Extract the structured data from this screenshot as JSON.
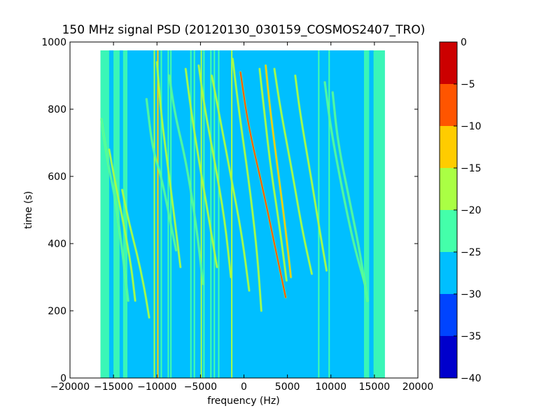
{
  "chart_data": {
    "type": "heatmap",
    "title": "150 MHz signal PSD (20120130_030159_COSMOS2407_TRO)",
    "xlabel": "frequency (Hz)",
    "ylabel": "time (s)",
    "xlim": [
      -20000,
      20000
    ],
    "ylim": [
      0,
      1000
    ],
    "x_ticks": [
      -20000,
      -15000,
      -10000,
      -5000,
      0,
      5000,
      10000,
      15000,
      20000
    ],
    "x_tick_labels": [
      "−20000",
      "−15000",
      "−10000",
      "−5000",
      "0",
      "5000",
      "10000",
      "15000",
      "20000"
    ],
    "y_ticks": [
      0,
      200,
      400,
      600,
      800,
      1000
    ],
    "y_tick_labels": [
      "0",
      "200",
      "400",
      "600",
      "800",
      "1000"
    ],
    "data_extent": {
      "x": [
        -16500,
        16200
      ],
      "y": [
        0,
        975
      ]
    },
    "background_level": -27.5,
    "colorbar": {
      "range": [
        -40,
        0
      ],
      "ticks": [
        0,
        -5,
        -10,
        -15,
        -20,
        -25,
        -30,
        -35,
        -40
      ],
      "tick_labels": [
        "0",
        "−5",
        "−10",
        "−15",
        "−20",
        "−25",
        "−30",
        "−35",
        "−40"
      ],
      "levels": [
        {
          "from": -40,
          "to": -35,
          "color": "#0000cc"
        },
        {
          "from": -35,
          "to": -30,
          "color": "#0044ff"
        },
        {
          "from": -30,
          "to": -25,
          "color": "#00bfff"
        },
        {
          "from": -25,
          "to": -20,
          "color": "#44ffaa"
        },
        {
          "from": -20,
          "to": -15,
          "color": "#aaff44"
        },
        {
          "from": -15,
          "to": -10,
          "color": "#ffcc00"
        },
        {
          "from": -10,
          "to": -5,
          "color": "#ff5500"
        },
        {
          "from": -5,
          "to": 0,
          "color": "#cc0000"
        }
      ]
    },
    "edge_bands": [
      {
        "x": [
          -16500,
          -15500
        ],
        "level": -22.5
      },
      {
        "x": [
          -15000,
          -14300
        ],
        "level": -22.5
      },
      {
        "x": [
          -13900,
          -13400
        ],
        "level": -24
      },
      {
        "x": [
          13800,
          14400
        ],
        "level": -22.5
      },
      {
        "x": [
          14900,
          16200
        ],
        "level": -22.5
      }
    ],
    "vertical_lines": [
      {
        "x": -10300,
        "level": -17.5
      },
      {
        "x": -9900,
        "level": -12.5
      },
      {
        "x": -9500,
        "level": -22.5
      },
      {
        "x": -8700,
        "level": -22.5
      },
      {
        "x": -8400,
        "level": -22.5
      },
      {
        "x": -6100,
        "level": -22.5
      },
      {
        "x": -5700,
        "level": -22.5
      },
      {
        "x": -4900,
        "level": -17.5
      },
      {
        "x": -4600,
        "level": -22.5
      },
      {
        "x": -3800,
        "level": -22.5
      },
      {
        "x": -3400,
        "level": -22.5
      },
      {
        "x": -2900,
        "level": -22.5
      },
      {
        "x": -1400,
        "level": -17.5
      },
      {
        "x": 8600,
        "level": -22.5
      },
      {
        "x": 9800,
        "level": -22.5
      }
    ],
    "series": [
      {
        "x": [
          -16400,
          -15700,
          -14700,
          -14000,
          -13300
        ],
        "y": [
          770,
          650,
          520,
          380,
          230
        ],
        "level": -22.5
      },
      {
        "x": [
          -15500,
          -14800,
          -14000,
          -13000,
          -12500
        ],
        "y": [
          680,
          580,
          480,
          340,
          230
        ],
        "level": -17.5
      },
      {
        "x": [
          -14000,
          -13200,
          -12200,
          -11400,
          -10900
        ],
        "y": [
          560,
          460,
          360,
          260,
          180
        ],
        "level": -17.5
      },
      {
        "x": [
          -11200,
          -10500,
          -9500,
          -8500,
          -7800
        ],
        "y": [
          830,
          680,
          600,
          470,
          380
        ],
        "level": -22.5
      },
      {
        "x": [
          -10000,
          -9500,
          -8800,
          -8000,
          -7300
        ],
        "y": [
          940,
          780,
          640,
          480,
          330
        ],
        "level": -17.5
      },
      {
        "x": [
          -8600,
          -7900,
          -6700,
          -5500,
          -4700
        ],
        "y": [
          900,
          780,
          650,
          460,
          280
        ],
        "level": -22.5
      },
      {
        "x": [
          -6700,
          -6100,
          -5200,
          -4000,
          -3100
        ],
        "y": [
          920,
          800,
          650,
          470,
          330
        ],
        "level": -17.5
      },
      {
        "x": [
          -5200,
          -4500,
          -3400,
          -2200,
          -1500
        ],
        "y": [
          930,
          800,
          650,
          470,
          300
        ],
        "level": -17.5
      },
      {
        "x": [
          -3700,
          -2800,
          -1500,
          -200,
          600
        ],
        "y": [
          900,
          780,
          600,
          420,
          260
        ],
        "level": -17.5
      },
      {
        "x": [
          -1300,
          -500,
          600,
          1500,
          2000
        ],
        "y": [
          950,
          780,
          580,
          380,
          200
        ],
        "level": -17.5
      },
      {
        "x": [
          -400,
          500,
          2200,
          3500,
          4800
        ],
        "y": [
          910,
          750,
          560,
          400,
          240
        ],
        "level": -7.5
      },
      {
        "x": [
          1800,
          2300,
          3100,
          4100,
          4900
        ],
        "y": [
          920,
          800,
          620,
          450,
          290
        ],
        "level": -17.5
      },
      {
        "x": [
          2500,
          3000,
          3900,
          4800,
          5400
        ],
        "y": [
          930,
          800,
          620,
          440,
          300
        ],
        "level": -12.5
      },
      {
        "x": [
          3500,
          4200,
          5500,
          6700,
          7800
        ],
        "y": [
          920,
          800,
          620,
          440,
          310
        ],
        "level": -17.5
      },
      {
        "x": [
          5900,
          6500,
          7700,
          8700,
          9500
        ],
        "y": [
          900,
          780,
          600,
          440,
          320
        ],
        "level": -17.5
      },
      {
        "x": [
          9300,
          10000,
          11300,
          12600,
          13900
        ],
        "y": [
          880,
          740,
          560,
          400,
          280
        ],
        "level": -22.5
      },
      {
        "x": [
          10200,
          10800,
          12200,
          13300,
          14200
        ],
        "y": [
          850,
          700,
          520,
          380,
          230
        ],
        "level": -22.5
      }
    ]
  }
}
